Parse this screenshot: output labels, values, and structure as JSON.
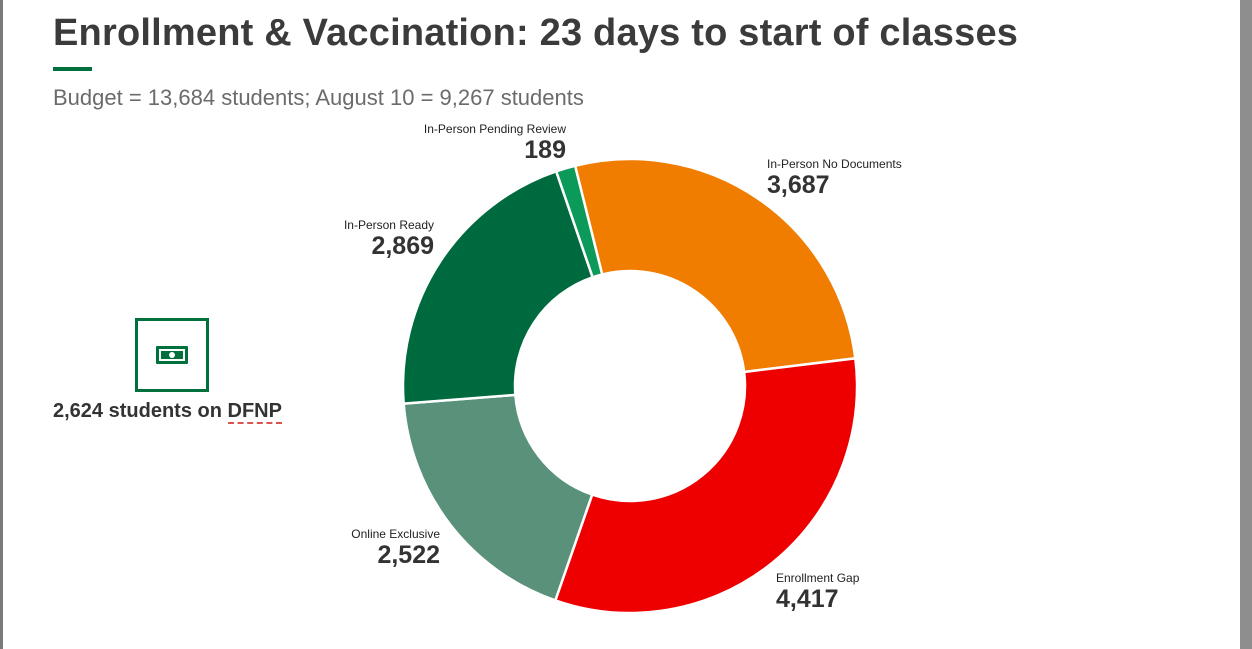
{
  "header": {
    "title": "Enrollment & Vaccination: 23 days to start of classes",
    "subtitle": "Budget = 13,684 students;  August 10 =  9,267 students"
  },
  "dfnp": {
    "icon": "cash-icon",
    "caption_prefix": "2,624 students on ",
    "caption_abbr": "DFNP"
  },
  "chart_data": {
    "type": "pie",
    "donut": true,
    "title": "",
    "series": [
      {
        "name": "In-Person No Documents",
        "value": 3687,
        "value_label": "3,687",
        "color": "#f07c00"
      },
      {
        "name": "Enrollment Gap",
        "value": 4417,
        "value_label": "4,417",
        "color": "#ee0000"
      },
      {
        "name": "Online Exclusive",
        "value": 2522,
        "value_label": "2,522",
        "color": "#5a917a"
      },
      {
        "name": "In-Person Ready",
        "value": 2869,
        "value_label": "2,869",
        "color": "#006a3f"
      },
      {
        "name": "In-Person Pending Review",
        "value": 189,
        "value_label": "189",
        "color": "#0c9a5a"
      }
    ],
    "legend": "none"
  }
}
